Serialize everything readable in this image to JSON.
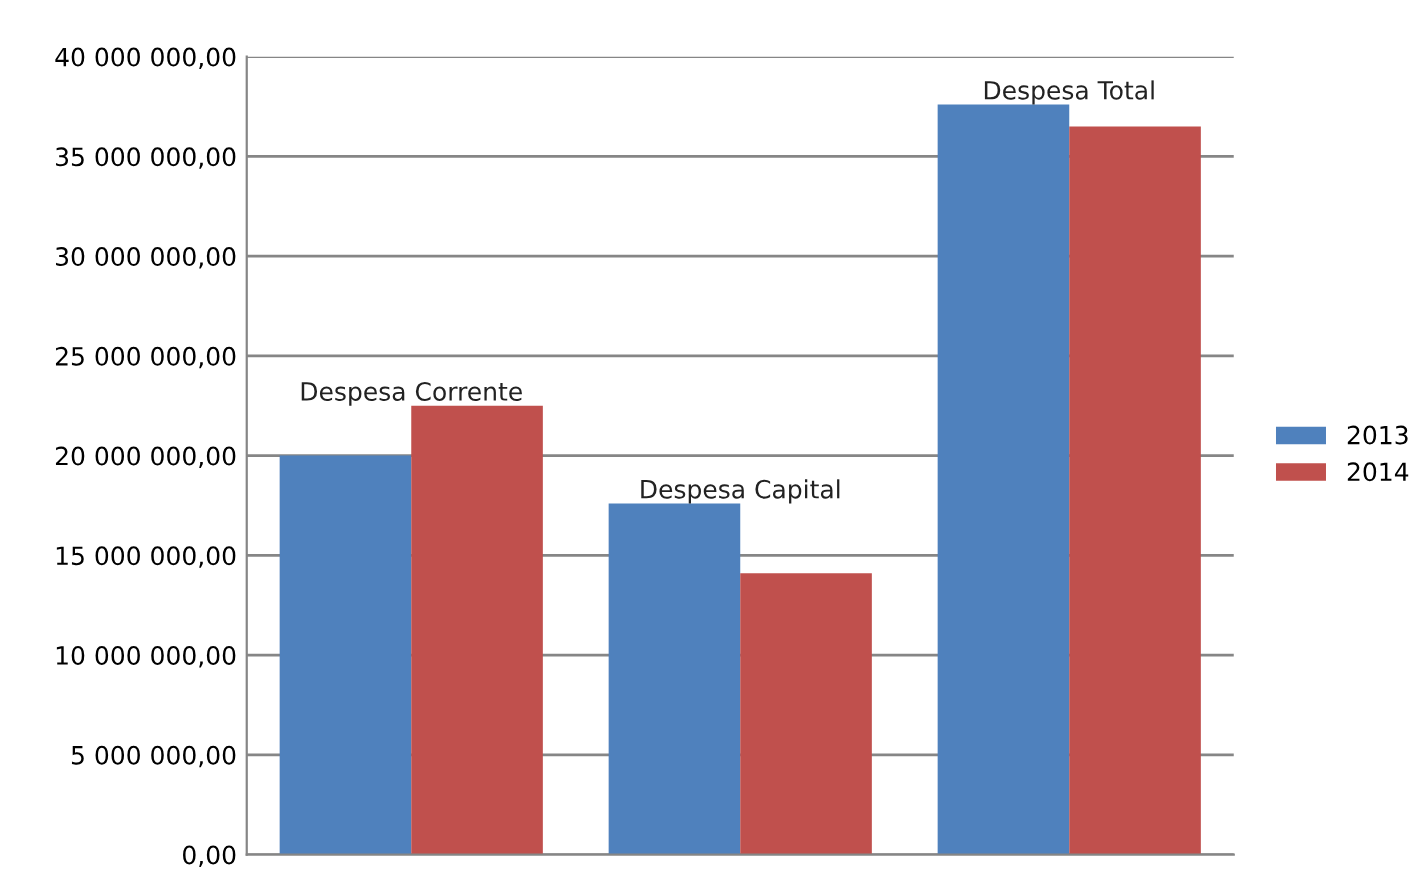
{
  "chart_data": {
    "type": "bar",
    "categories": [
      "Despesa Corrente",
      "Despesa Capital",
      "Despesa Total"
    ],
    "series": [
      {
        "name": "2013",
        "color": "#4f81bd",
        "values": [
          20000000,
          17600000,
          37600000
        ]
      },
      {
        "name": "2014",
        "color": "#c0504d",
        "values": [
          22500000,
          14100000,
          36500000
        ]
      }
    ],
    "ylim": [
      0,
      40000000
    ],
    "yticks": [
      {
        "value": 0,
        "label": "0,00"
      },
      {
        "value": 5000000,
        "label": "5 000 000,00"
      },
      {
        "value": 10000000,
        "label": "10 000 000,00"
      },
      {
        "value": 15000000,
        "label": "15 000 000,00"
      },
      {
        "value": 20000000,
        "label": "20 000 000,00"
      },
      {
        "value": 25000000,
        "label": "25 000 000,00"
      },
      {
        "value": 30000000,
        "label": "30 000 000,00"
      },
      {
        "value": 35000000,
        "label": "35 000 000,00"
      },
      {
        "value": 40000000,
        "label": "40 000 000,00"
      }
    ],
    "grid": "y",
    "legend": "right"
  }
}
